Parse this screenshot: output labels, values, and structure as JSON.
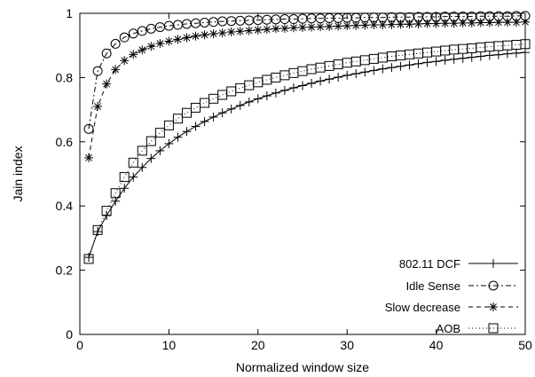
{
  "chart_data": {
    "type": "line",
    "title": "",
    "xlabel": "Normalized window size",
    "ylabel": "Jain index",
    "xlim": [
      0,
      50
    ],
    "ylim": [
      0,
      1
    ],
    "xticks": [
      0,
      10,
      20,
      30,
      40,
      50
    ],
    "yticks": [
      0,
      0.2,
      0.4,
      0.6,
      0.8,
      1
    ],
    "xtick_labels": [
      "0",
      "10",
      "20",
      "30",
      "40",
      "50"
    ],
    "ytick_labels": [
      "0",
      "0.2",
      "0.4",
      "0.6",
      "0.8",
      "1"
    ],
    "grid": false,
    "legend_position": "bottom-right",
    "x": [
      1,
      2,
      3,
      4,
      5,
      6,
      7,
      8,
      9,
      10,
      11,
      12,
      13,
      14,
      15,
      16,
      17,
      18,
      19,
      20,
      21,
      22,
      23,
      24,
      25,
      26,
      27,
      28,
      29,
      30,
      31,
      32,
      33,
      34,
      35,
      36,
      37,
      38,
      39,
      40,
      41,
      42,
      43,
      44,
      45,
      46,
      47,
      48,
      49,
      50
    ],
    "series": [
      {
        "name": "802.11 DCF",
        "marker": "plus",
        "dash": "",
        "values": [
          0.24,
          0.32,
          0.37,
          0.415,
          0.455,
          0.49,
          0.52,
          0.548,
          0.572,
          0.594,
          0.614,
          0.632,
          0.648,
          0.663,
          0.677,
          0.69,
          0.702,
          0.713,
          0.724,
          0.734,
          0.743,
          0.752,
          0.76,
          0.768,
          0.775,
          0.782,
          0.789,
          0.795,
          0.801,
          0.807,
          0.812,
          0.817,
          0.822,
          0.827,
          0.831,
          0.835,
          0.839,
          0.843,
          0.847,
          0.85,
          0.854,
          0.857,
          0.86,
          0.863,
          0.866,
          0.869,
          0.871,
          0.874,
          0.876,
          0.878
        ]
      },
      {
        "name": "Idle Sense",
        "marker": "circle",
        "dash": "6,3,2,3",
        "values": [
          0.64,
          0.82,
          0.875,
          0.905,
          0.925,
          0.937,
          0.945,
          0.952,
          0.957,
          0.961,
          0.964,
          0.967,
          0.969,
          0.971,
          0.973,
          0.975,
          0.976,
          0.977,
          0.978,
          0.979,
          0.98,
          0.981,
          0.982,
          0.982,
          0.983,
          0.984,
          0.984,
          0.985,
          0.985,
          0.986,
          0.986,
          0.987,
          0.987,
          0.987,
          0.988,
          0.988,
          0.988,
          0.989,
          0.989,
          0.989,
          0.99,
          0.99,
          0.99,
          0.99,
          0.991,
          0.991,
          0.991,
          0.991,
          0.992,
          0.992
        ]
      },
      {
        "name": "Slow decrease",
        "marker": "asterisk",
        "dash": "5,4",
        "values": [
          0.55,
          0.71,
          0.78,
          0.825,
          0.853,
          0.872,
          0.886,
          0.897,
          0.906,
          0.913,
          0.919,
          0.924,
          0.929,
          0.933,
          0.936,
          0.939,
          0.942,
          0.944,
          0.946,
          0.948,
          0.95,
          0.952,
          0.953,
          0.955,
          0.956,
          0.957,
          0.958,
          0.959,
          0.96,
          0.961,
          0.962,
          0.963,
          0.964,
          0.964,
          0.965,
          0.966,
          0.966,
          0.967,
          0.968,
          0.968,
          0.969,
          0.969,
          0.97,
          0.97,
          0.971,
          0.971,
          0.972,
          0.972,
          0.972,
          0.973
        ]
      },
      {
        "name": "AOB",
        "marker": "square",
        "dash": "1,3",
        "values": [
          0.235,
          0.325,
          0.385,
          0.44,
          0.49,
          0.535,
          0.572,
          0.602,
          0.628,
          0.651,
          0.672,
          0.69,
          0.706,
          0.721,
          0.734,
          0.746,
          0.757,
          0.767,
          0.776,
          0.785,
          0.793,
          0.8,
          0.807,
          0.814,
          0.82,
          0.826,
          0.831,
          0.836,
          0.841,
          0.846,
          0.85,
          0.854,
          0.858,
          0.862,
          0.866,
          0.869,
          0.872,
          0.875,
          0.878,
          0.881,
          0.884,
          0.887,
          0.889,
          0.891,
          0.894,
          0.896,
          0.898,
          0.9,
          0.902,
          0.904
        ]
      }
    ]
  }
}
